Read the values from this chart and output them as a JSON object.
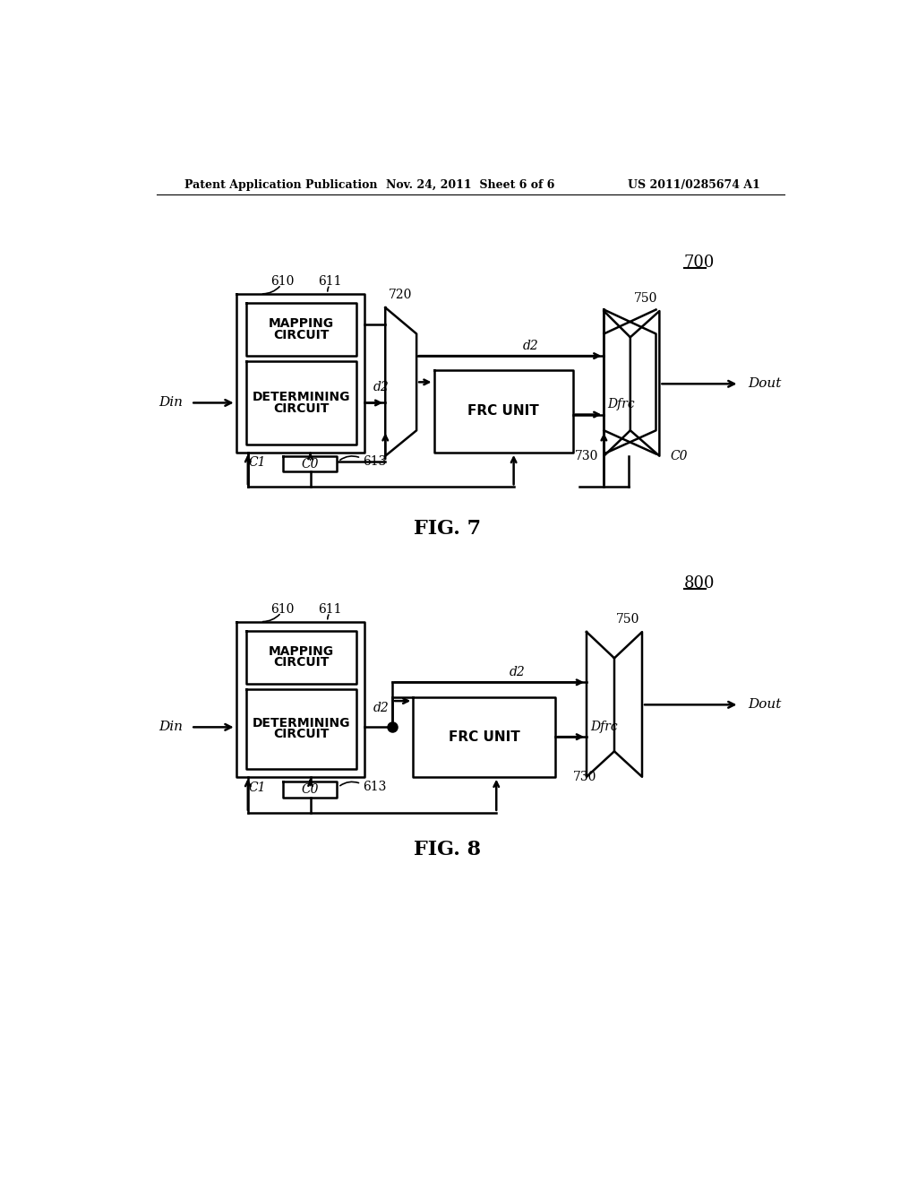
{
  "bg_color": "#ffffff",
  "lc": "#000000",
  "header_left": "Patent Application Publication",
  "header_mid": "Nov. 24, 2011  Sheet 6 of 6",
  "header_right": "US 2011/0285674 A1",
  "fig7_label": "700",
  "fig7_caption": "FIG. 7",
  "fig8_label": "800",
  "fig8_caption": "FIG. 8"
}
